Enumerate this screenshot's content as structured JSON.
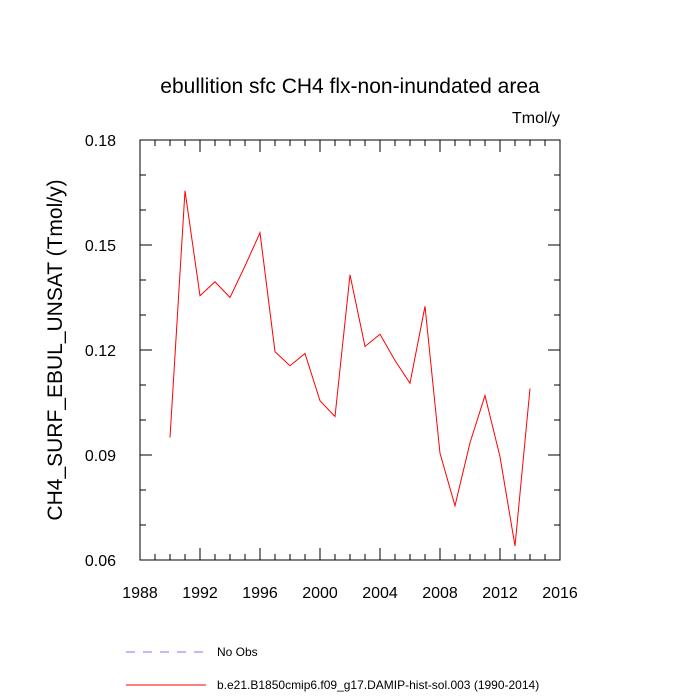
{
  "chart_data": {
    "type": "line",
    "title": "ebullition sfc CH4 flx-non-inundated area",
    "units": "Tmol/y",
    "ylabel": "CH4_SURF_EBUL_UNSAT  (Tmol/y)",
    "xlabel": "",
    "xlim": [
      1988,
      2016
    ],
    "ylim": [
      0.06,
      0.18
    ],
    "x_ticks": [
      1988,
      1992,
      1996,
      2000,
      2004,
      2008,
      2012,
      2016
    ],
    "x_tick_labels": [
      "1988",
      "1992",
      "1996",
      "2000",
      "2004",
      "2008",
      "2012",
      "2016"
    ],
    "y_ticks": [
      0.06,
      0.09,
      0.12,
      0.15,
      0.18
    ],
    "y_tick_labels": [
      "0.06",
      "0.09",
      "0.12",
      "0.15",
      "0.18"
    ],
    "grid": false,
    "legend_placement": "bottom",
    "series": [
      {
        "name": "b.e21.B1850cmip6.f09_g17.DAMIP-hist-sol.003 (1990-2014)",
        "color": "#ff0000",
        "dash": "solid",
        "x": [
          1990,
          1991,
          1992,
          1993,
          1994,
          1995,
          1996,
          1997,
          1998,
          1999,
          2000,
          2001,
          2002,
          2003,
          2004,
          2005,
          2006,
          2007,
          2008,
          2009,
          2010,
          2011,
          2012,
          2013,
          2014
        ],
        "y": [
          0.095,
          0.1655,
          0.1355,
          0.1395,
          0.135,
          0.144,
          0.1535,
          0.1195,
          0.1155,
          0.119,
          0.1055,
          0.101,
          0.1415,
          0.121,
          0.1245,
          0.117,
          0.1105,
          0.1325,
          0.0905,
          0.0755,
          0.0935,
          0.107,
          0.0895,
          0.064,
          0.109
        ]
      }
    ],
    "legend": [
      {
        "label": "No Obs",
        "color": "#7777ff",
        "dash": "dashed"
      },
      {
        "label": "b.e21.B1850cmip6.f09_g17.DAMIP-hist-sol.003 (1990-2014)",
        "color": "#ff0000",
        "dash": "solid"
      }
    ]
  }
}
